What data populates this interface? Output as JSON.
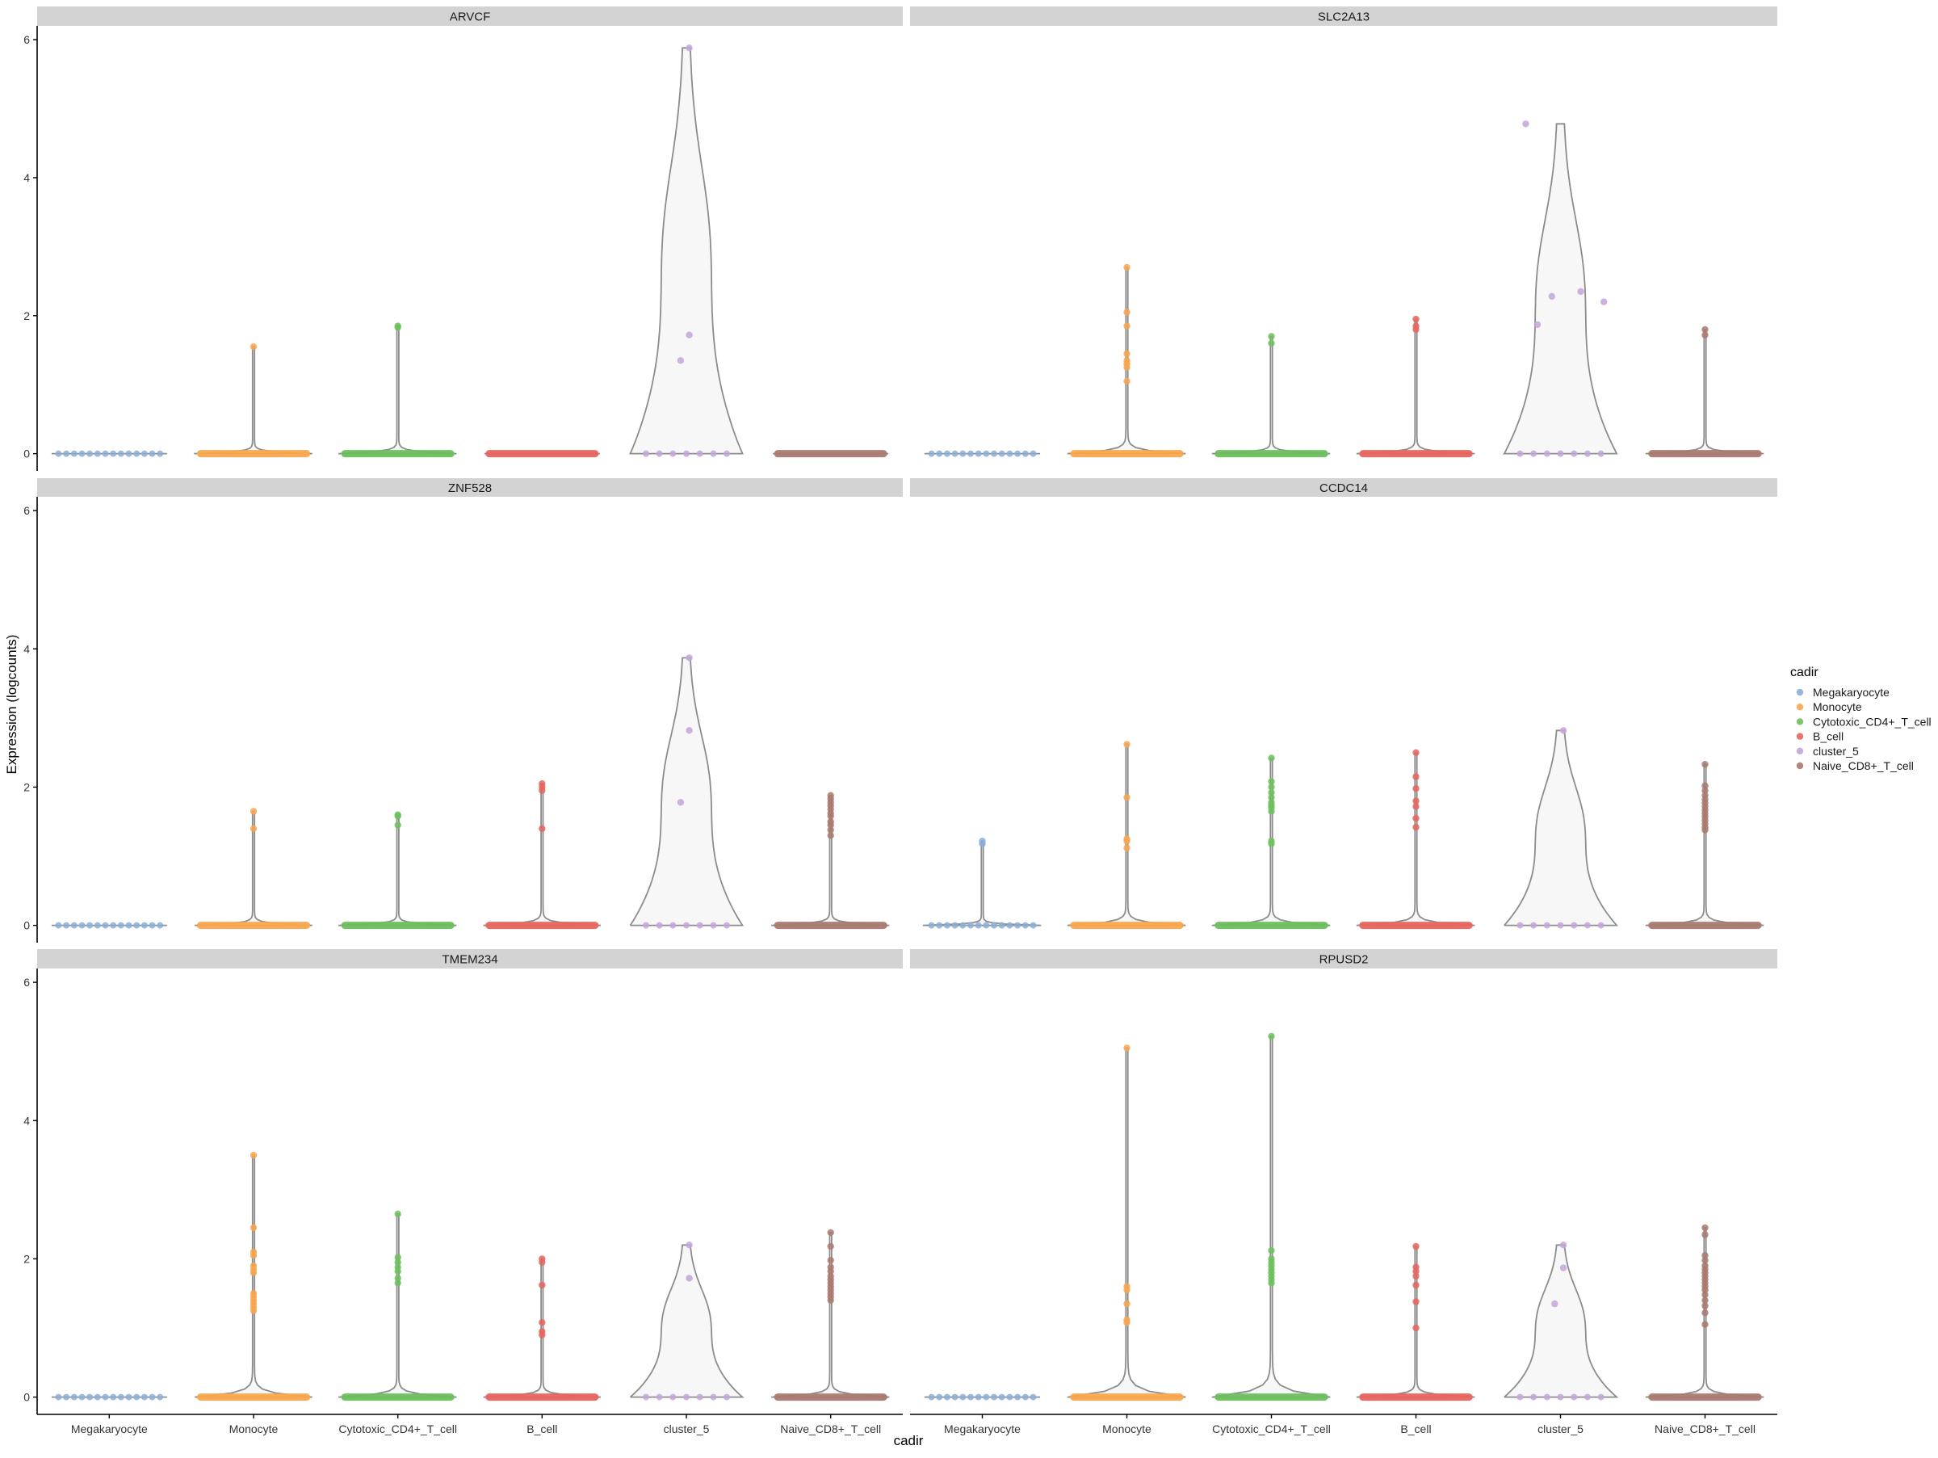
{
  "chart_data": {
    "type": "violin",
    "xlabel": "cadir",
    "ylabel": "Expression (logcounts)",
    "ylim": [
      -0.25,
      6.2
    ],
    "yticks": [
      0,
      2,
      4,
      6
    ],
    "grid": false,
    "legend": {
      "title": "cadir",
      "placement": "right",
      "entries": [
        "Megakaryocyte",
        "Monocyte",
        "Cytotoxic_CD4+_T_cell",
        "B_cell",
        "cluster_5",
        "Naive_CD8+_T_cell"
      ]
    },
    "categories": [
      "Megakaryocyte",
      "Monocyte",
      "Cytotoxic_CD4+_T_cell",
      "B_cell",
      "cluster_5",
      "Naive_CD8+_T_cell"
    ],
    "colors": [
      "#8aaed6",
      "#f9a64f",
      "#6dbf5e",
      "#e8645e",
      "#c3a5d8",
      "#a97a70"
    ],
    "panels": [
      {
        "gene": "ARVCF",
        "groups": [
          {
            "category": "Megakaryocyte",
            "max": 0,
            "points": []
          },
          {
            "category": "Monocyte",
            "max": 1.55,
            "points": [
              1.55
            ]
          },
          {
            "category": "Cytotoxic_CD4+_T_cell",
            "max": 1.85,
            "points": [
              1.85,
              1.83
            ]
          },
          {
            "category": "B_cell",
            "max": 0,
            "points": []
          },
          {
            "category": "cluster_5",
            "max": 5.88,
            "points": [
              5.88,
              1.72,
              1.35
            ]
          },
          {
            "category": "Naive_CD8+_T_cell",
            "max": 0,
            "points": []
          }
        ]
      },
      {
        "gene": "SLC2A13",
        "groups": [
          {
            "category": "Megakaryocyte",
            "max": 0,
            "points": []
          },
          {
            "category": "Monocyte",
            "max": 2.7,
            "points": [
              2.7,
              2.05,
              1.85,
              1.45,
              1.35,
              1.3,
              1.25,
              1.05
            ]
          },
          {
            "category": "Cytotoxic_CD4+_T_cell",
            "max": 1.7,
            "points": [
              1.7,
              1.6
            ]
          },
          {
            "category": "B_cell",
            "max": 1.95,
            "points": [
              1.95,
              1.85,
              1.8
            ]
          },
          {
            "category": "cluster_5",
            "max": 4.78,
            "points": [
              4.78,
              2.35,
              2.28,
              2.2,
              1.87
            ]
          },
          {
            "category": "Naive_CD8+_T_cell",
            "max": 1.8,
            "points": [
              1.8,
              1.72
            ]
          }
        ]
      },
      {
        "gene": "ZNF528",
        "groups": [
          {
            "category": "Megakaryocyte",
            "max": 0,
            "points": []
          },
          {
            "category": "Monocyte",
            "max": 1.65,
            "points": [
              1.65,
              1.4
            ]
          },
          {
            "category": "Cytotoxic_CD4+_T_cell",
            "max": 1.6,
            "points": [
              1.6,
              1.58,
              1.45
            ]
          },
          {
            "category": "B_cell",
            "max": 2.05,
            "points": [
              2.05,
              2.0,
              1.95,
              1.4
            ]
          },
          {
            "category": "cluster_5",
            "max": 3.87,
            "points": [
              3.87,
              2.82,
              1.78
            ]
          },
          {
            "category": "Naive_CD8+_T_cell",
            "max": 1.88,
            "points": [
              1.88,
              1.83,
              1.78,
              1.73,
              1.68,
              1.62,
              1.58,
              1.5,
              1.45,
              1.38,
              1.3
            ]
          }
        ]
      },
      {
        "gene": "CCDC14",
        "groups": [
          {
            "category": "Megakaryocyte",
            "max": 1.22,
            "points": [
              1.22,
              1.18
            ]
          },
          {
            "category": "Monocyte",
            "max": 2.62,
            "points": [
              2.62,
              1.85,
              1.25,
              1.22,
              1.12
            ]
          },
          {
            "category": "Cytotoxic_CD4+_T_cell",
            "max": 2.42,
            "points": [
              2.42,
              2.08,
              2.0,
              1.92,
              1.85,
              1.78,
              1.74,
              1.7,
              1.65,
              1.22,
              1.18
            ]
          },
          {
            "category": "B_cell",
            "max": 2.5,
            "points": [
              2.5,
              2.15,
              1.98,
              1.8,
              1.72,
              1.55,
              1.42
            ]
          },
          {
            "category": "cluster_5",
            "max": 2.82,
            "points": [
              2.82
            ]
          },
          {
            "category": "Naive_CD8+_T_cell",
            "max": 2.33,
            "points": [
              2.33,
              2.02,
              1.95,
              1.88,
              1.82,
              1.77,
              1.72,
              1.67,
              1.62,
              1.57,
              1.52,
              1.47,
              1.42,
              1.38
            ]
          }
        ]
      },
      {
        "gene": "TMEM234",
        "groups": [
          {
            "category": "Megakaryocyte",
            "max": 0,
            "points": []
          },
          {
            "category": "Monocyte",
            "max": 3.5,
            "points": [
              3.5,
              2.45,
              2.1,
              2.05,
              1.9,
              1.85,
              1.8,
              1.5,
              1.45,
              1.4,
              1.35,
              1.3,
              1.25
            ]
          },
          {
            "category": "Cytotoxic_CD4+_T_cell",
            "max": 2.65,
            "points": [
              2.65,
              2.02,
              1.95,
              1.88,
              1.82,
              1.72,
              1.65
            ]
          },
          {
            "category": "B_cell",
            "max": 2.0,
            "points": [
              2.0,
              1.95,
              1.62,
              1.08,
              0.95,
              0.9
            ]
          },
          {
            "category": "cluster_5",
            "max": 2.2,
            "points": [
              2.2,
              1.72
            ]
          },
          {
            "category": "Naive_CD8+_T_cell",
            "max": 2.38,
            "points": [
              2.38,
              2.18,
              1.98,
              1.88,
              1.82,
              1.75,
              1.7,
              1.65,
              1.6,
              1.55,
              1.5,
              1.45,
              1.4
            ]
          }
        ]
      },
      {
        "gene": "RPUSD2",
        "groups": [
          {
            "category": "Megakaryocyte",
            "max": 0,
            "points": []
          },
          {
            "category": "Monocyte",
            "max": 5.05,
            "points": [
              5.05,
              1.6,
              1.55,
              1.35,
              1.12,
              1.08
            ]
          },
          {
            "category": "Cytotoxic_CD4+_T_cell",
            "max": 5.22,
            "points": [
              5.22,
              2.12,
              2.0,
              1.95,
              1.9,
              1.85,
              1.8,
              1.75,
              1.7,
              1.65
            ]
          },
          {
            "category": "B_cell",
            "max": 2.18,
            "points": [
              2.18,
              1.88,
              1.82,
              1.75,
              1.62,
              1.38,
              1.0
            ]
          },
          {
            "category": "cluster_5",
            "max": 2.2,
            "points": [
              2.2,
              1.87,
              1.35
            ]
          },
          {
            "category": "Naive_CD8+_T_cell",
            "max": 2.45,
            "points": [
              2.45,
              2.35,
              2.05,
              1.98,
              1.9,
              1.85,
              1.8,
              1.75,
              1.7,
              1.65,
              1.6,
              1.55,
              1.48,
              1.4,
              1.32,
              1.22,
              1.05
            ]
          }
        ]
      }
    ]
  }
}
